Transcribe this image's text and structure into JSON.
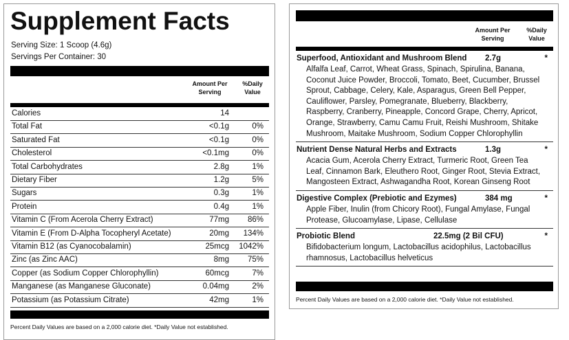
{
  "left": {
    "title": "Supplement Facts",
    "serving_size": "Serving Size: 1 Scoop (4.6g)",
    "servings_per_container": "Servings Per Container: 30",
    "header": {
      "amount": "Amount Per Serving",
      "daily": "%Daily Value"
    },
    "rows": [
      {
        "name": "Calories",
        "amount": "14"
      },
      {
        "name": "Total Fat",
        "amount": "<0.1g",
        "dv": "0%"
      },
      {
        "name": "Saturated Fat",
        "amount": "<0.1g",
        "dv": "0%"
      },
      {
        "name": "Cholesterol",
        "amount": "<0.1mg",
        "dv": "0%"
      },
      {
        "name": "Total Carbohydrates",
        "amount": "2.8g",
        "dv": "1%"
      },
      {
        "name": "Dietary Fiber",
        "amount": "1.2g",
        "dv": "5%"
      },
      {
        "name": "Sugars",
        "amount": "0.3g",
        "dv": "1%"
      },
      {
        "name": "Protein",
        "amount": "0.4g",
        "dv": "1%"
      },
      {
        "name": "Vitamin C (From Acerola Cherry Extract)",
        "amount": "77mg",
        "dv": "86%"
      },
      {
        "name": "Vitamin E (From D-Alpha Tocopheryl Acetate)",
        "amount": "20mg",
        "dv": "134%"
      },
      {
        "name": "Vitamin B12 (as Cyanocobalamin)",
        "amount": "25mcg",
        "dv": "1042%"
      },
      {
        "name": "Zinc (as Zinc AAC)",
        "amount": "8mg",
        "dv": "75%"
      },
      {
        "name": "Copper (as Sodium Copper Chlorophyllin)",
        "amount": "60mcg",
        "dv": "7%"
      },
      {
        "name": "Manganese (as Manganese Gluconate)",
        "amount": "0.04mg",
        "dv": "2%"
      },
      {
        "name": "Potassium (as Potassium Citrate)",
        "amount": "42mg",
        "dv": "1%"
      }
    ],
    "footnote": "Percent Daily Values are based on a 2,000 calorie diet. *Daily Value not established."
  },
  "right": {
    "header": {
      "amount": "Amount Per Serving",
      "daily": "%Daily Value"
    },
    "blends": [
      {
        "name": "Superfood, Antioxidant and Mushroom Blend",
        "amount": "2.7g",
        "dv": "*",
        "ingredients": "Alfalfa Leaf, Carrot, Wheat Grass, Spinach, Spirulina, Banana, Coconut Juice Powder, Broccoli, Tomato, Beet, Cucumber, Brussel Sprout, Cabbage, Celery, Kale, Asparagus, Green Bell Pepper, Cauliflower, Parsley, Pomegranate, Blueberry, Blackberry, Raspberry, Cranberry, Pineapple, Concord Grape, Cherry, Apricot, Orange, Strawberry, Camu Camu Fruit, Reishi Mushroom, Shitake Mushroom, Maitake Mushroom, Sodium Copper Chlorophyllin"
      },
      {
        "name": "Nutrient Dense Natural Herbs and Extracts",
        "amount": "1.3g",
        "dv": "*",
        "ingredients": "Acacia Gum, Acerola Cherry Extract, Turmeric Root, Green Tea Leaf, Cinnamon Bark, Eleuthero Root, Ginger Root, Stevia Extract, Mangosteen Extract, Ashwagandha Root, Korean Ginseng Root"
      },
      {
        "name": "Digestive Complex (Prebiotic and Ezymes)",
        "amount": "384 mg",
        "dv": "*",
        "ingredients": "Apple Fiber, Inulin (from Chicory Root), Fungal Amylase, Fungal Protease, Glucoamylase, Lipase, Cellulase"
      },
      {
        "name": "Probiotic Blend",
        "amount": "22.5mg (2 Bil CFU)",
        "dv": "*",
        "ingredients": "Bifidobacterium longum, Lactobacillus acidophilus, Lactobacillus rhamnosus, Lactobacillus helveticus"
      }
    ],
    "footnote": "Percent Daily Values are based on a 2,000 calorie diet. *Daily Value not established."
  }
}
